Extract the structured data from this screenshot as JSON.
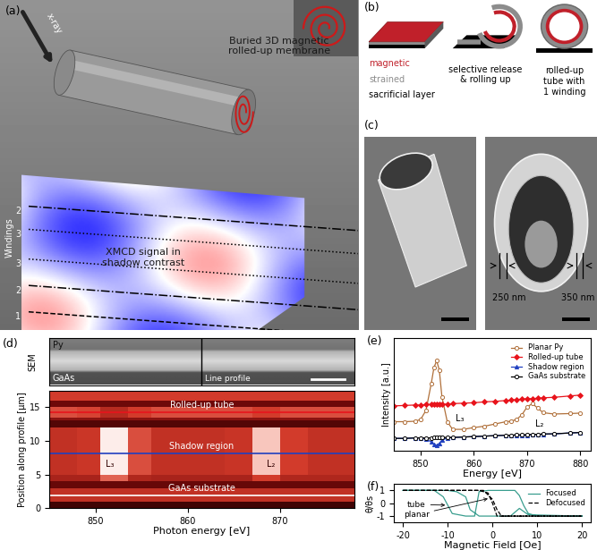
{
  "illustrations": {
    "a": {
      "label": "(a)",
      "xray": "x-ray",
      "membrane": "Buried 3D magnetic\nrolled-up membrane",
      "signal": "XMCD signal in\nshadow contrast",
      "windings": "Windings",
      "winding_numbers": [
        "2",
        "3",
        "3",
        "2",
        "1"
      ]
    },
    "b": {
      "label": "(b)",
      "layers": [
        "magnetic",
        "strained",
        "sacrificial layer"
      ],
      "steps": [
        "selective release\n& rolling up",
        "rolled-up\ntube with\n1 winding"
      ]
    },
    "c": {
      "label": "(c)",
      "thicknesses": [
        "250 nm",
        "350 nm"
      ]
    },
    "d_sem": {
      "side_label": "SEM",
      "top": "Py",
      "bottom": "GaAs",
      "line": "Line profile"
    }
  },
  "chart_data": [
    {
      "type": "heatmap",
      "panel": "(d)",
      "xlabel": "Photon energy [eV]",
      "ylabel": "Position along profile [μm]",
      "x_edges": [
        845,
        848,
        850.5,
        853.5,
        856,
        860,
        864,
        867,
        870,
        873,
        876,
        878
      ],
      "y_edges": [
        0,
        1,
        3,
        4,
        5,
        12,
        13,
        13.5,
        15,
        16,
        17.5
      ],
      "cells": [
        [
          0.1,
          0.1,
          0.1,
          0.1,
          0.1,
          0.1,
          0.1,
          0.1,
          0.1,
          0.1,
          0.1
        ],
        [
          0.45,
          0.45,
          0.45,
          0.45,
          0.45,
          0.45,
          0.45,
          0.45,
          0.45,
          0.45,
          0.45
        ],
        [
          0.2,
          0.2,
          0.2,
          0.2,
          0.2,
          0.2,
          0.2,
          0.2,
          0.2,
          0.2,
          0.2
        ],
        [
          0.38,
          0.38,
          0.6,
          0.4,
          0.38,
          0.38,
          0.38,
          0.5,
          0.4,
          0.4,
          0.4
        ],
        [
          0.45,
          0.48,
          0.95,
          0.55,
          0.45,
          0.45,
          0.47,
          0.85,
          0.5,
          0.45,
          0.45
        ],
        [
          0.15,
          0.15,
          0.15,
          0.15,
          0.15,
          0.15,
          0.15,
          0.15,
          0.15,
          0.15,
          0.15
        ],
        [
          0.3,
          0.3,
          0.3,
          0.3,
          0.3,
          0.3,
          0.3,
          0.3,
          0.3,
          0.3,
          0.3
        ],
        [
          0.55,
          0.52,
          0.42,
          0.5,
          0.55,
          0.55,
          0.55,
          0.5,
          0.55,
          0.55,
          0.55
        ],
        [
          0.22,
          0.22,
          0.22,
          0.22,
          0.22,
          0.22,
          0.22,
          0.22,
          0.22,
          0.22,
          0.22
        ],
        [
          0.5,
          0.5,
          0.5,
          0.5,
          0.5,
          0.5,
          0.5,
          0.5,
          0.5,
          0.5,
          0.5
        ]
      ],
      "value_range": [
        0,
        1
      ],
      "xlim": [
        845,
        878
      ],
      "xticks": [
        850,
        860,
        870
      ],
      "ylim": [
        0,
        17.5
      ],
      "yticks": [
        0,
        5,
        10,
        15
      ],
      "profile_lines": [
        {
          "name": "Rolled-up tube",
          "position": 14.3,
          "color": "#e8141c"
        },
        {
          "name": "Shadow region",
          "position": 8.2,
          "color": "#2040c0"
        },
        {
          "name": "GaAs substrate",
          "position": 1.9,
          "color": "#ffffff"
        }
      ],
      "annotations": [
        {
          "text": "L₃",
          "x": 851.5
        },
        {
          "text": "L₂",
          "x": 869
        }
      ]
    },
    {
      "type": "line",
      "panel": "(e)",
      "xlabel": "Energy [eV]",
      "ylabel": "Intensity [a.u.]",
      "x": [
        845,
        847,
        849,
        850,
        851,
        852,
        852.5,
        853,
        853.5,
        854,
        855,
        856,
        858,
        860,
        862,
        864,
        866,
        867,
        868,
        869,
        870,
        871,
        872,
        873,
        875,
        878,
        880
      ],
      "series": [
        {
          "name": "Planar Py",
          "color": "#b0703a",
          "marker": "circle",
          "values": [
            0.55,
            0.55,
            0.56,
            0.6,
            0.8,
            1.4,
            1.75,
            1.9,
            1.7,
            1.1,
            0.55,
            0.38,
            0.38,
            0.42,
            0.45,
            0.5,
            0.55,
            0.56,
            0.6,
            0.7,
            0.88,
            0.95,
            0.85,
            0.75,
            0.72,
            0.73,
            0.74
          ]
        },
        {
          "name": "Rolled-up tube",
          "color": "#e8141c",
          "marker": "diamond",
          "values": [
            0.9,
            0.91,
            0.92,
            0.92,
            0.93,
            0.93,
            0.93,
            0.93,
            0.93,
            0.94,
            0.94,
            0.95,
            0.96,
            0.97,
            0.99,
            1.0,
            1.02,
            1.03,
            1.04,
            1.05,
            1.06,
            1.06,
            1.07,
            1.08,
            1.09,
            1.12,
            1.14
          ]
        },
        {
          "name": "Shadow region",
          "color": "#2040c0",
          "marker": "triangle",
          "values": [
            0.18,
            0.18,
            0.19,
            0.19,
            0.17,
            0.1,
            0.05,
            0.02,
            0.07,
            0.14,
            0.19,
            0.2,
            0.21,
            0.22,
            0.23,
            0.24,
            0.25,
            0.25,
            0.25,
            0.24,
            0.25,
            0.26,
            0.27,
            0.27,
            0.28,
            0.3,
            0.31
          ]
        },
        {
          "name": "GaAs substrate",
          "color": "#000000",
          "marker": "circle",
          "values": [
            0.18,
            0.18,
            0.19,
            0.19,
            0.19,
            0.19,
            0.2,
            0.2,
            0.2,
            0.2,
            0.2,
            0.2,
            0.21,
            0.22,
            0.23,
            0.24,
            0.25,
            0.25,
            0.26,
            0.26,
            0.26,
            0.27,
            0.27,
            0.28,
            0.28,
            0.3,
            0.31
          ]
        }
      ],
      "xlim": [
        845,
        882
      ],
      "xticks": [
        850,
        860,
        870,
        880
      ],
      "ylim": [
        -0.1,
        2.4
      ],
      "yticks": [],
      "tick_labels": "x",
      "legend": "upper right",
      "annotations": [
        {
          "text": "L₃",
          "x": 856.5,
          "y": 0.62
        },
        {
          "text": "L₂",
          "x": 871.5,
          "y": 0.5
        }
      ]
    },
    {
      "type": "line",
      "panel": "(f)",
      "xlabel": "Magnetic Field [Oe]",
      "ylabel": "θ/θs",
      "series": [
        {
          "name": "Focused",
          "color": "#3a9e8f",
          "line_style": "solid",
          "x": [
            -20,
            -13,
            -11,
            -9,
            -6,
            -4,
            -3,
            -1,
            5,
            6,
            7,
            8,
            10,
            20,
            null,
            -20,
            -10,
            -8,
            -6,
            -5,
            -3,
            0,
            2,
            4,
            6,
            8,
            20
          ],
          "values": [
            1,
            1,
            0.5,
            -0.8,
            -1,
            -1,
            0.9,
            1,
            1,
            0.6,
            -0.2,
            -0.8,
            -1,
            -1,
            null,
            1,
            1,
            0.9,
            0.5,
            -0.5,
            -1,
            -1,
            -1,
            -1,
            -0.4,
            -0.9,
            -1
          ]
        },
        {
          "name": "Defocused",
          "color": "#000000",
          "line_style": "dashed",
          "x": [
            -20,
            -3,
            -1,
            0,
            1,
            20,
            null,
            -20,
            -2,
            0,
            1,
            2,
            20
          ],
          "values": [
            1,
            1,
            0.8,
            0,
            -1,
            -1,
            null,
            1,
            1,
            0.3,
            -0.5,
            -1,
            -1
          ]
        }
      ],
      "xlim": [
        -22,
        22
      ],
      "xticks": [
        -20,
        -10,
        0,
        10,
        20
      ],
      "ylim": [
        -1.5,
        1.5
      ],
      "yticks": [
        -1,
        0,
        1
      ],
      "legend": "upper right",
      "annotations": [
        "tube",
        "planar"
      ]
    }
  ]
}
